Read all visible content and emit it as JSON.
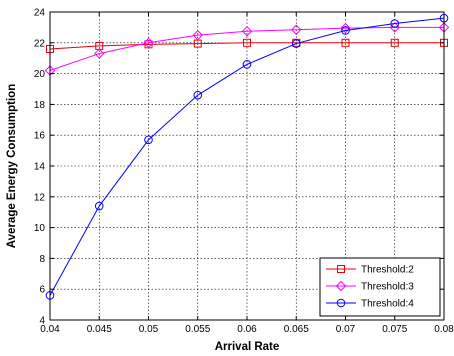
{
  "chart_data": {
    "type": "line",
    "title": "",
    "xlabel": "Arrival Rate",
    "ylabel": "Average Energy Consumption",
    "xlim": [
      0.04,
      0.08
    ],
    "ylim": [
      4,
      24
    ],
    "x": [
      0.04,
      0.045,
      0.05,
      0.055,
      0.06,
      0.065,
      0.07,
      0.075,
      0.08
    ],
    "x_tick_labels": [
      "0.04",
      "0.045",
      "0.05",
      "0.055",
      "0.06",
      "0.065",
      "0.07",
      "0.075",
      "0.08"
    ],
    "y_ticks": [
      4,
      6,
      8,
      10,
      12,
      14,
      16,
      18,
      20,
      22,
      24
    ],
    "y_tick_labels": [
      "4",
      "6",
      "8",
      "10",
      "12",
      "14",
      "16",
      "18",
      "20",
      "22",
      "24"
    ],
    "grid": true,
    "legend_position": "bottom-right",
    "series": [
      {
        "name": "Threshold:2",
        "color": "#e8000b",
        "marker": "square",
        "values": [
          21.6,
          21.8,
          21.9,
          21.95,
          22.0,
          22.0,
          22.0,
          22.0,
          22.0
        ]
      },
      {
        "name": "Threshold:3",
        "color": "#ff00ff",
        "marker": "diamond",
        "values": [
          20.2,
          21.3,
          22.0,
          22.5,
          22.75,
          22.85,
          22.95,
          23.0,
          23.0
        ]
      },
      {
        "name": "Threshold:4",
        "color": "#0000ff",
        "marker": "circle",
        "values": [
          5.6,
          11.4,
          15.7,
          18.6,
          20.6,
          21.95,
          22.8,
          23.25,
          23.6
        ]
      }
    ]
  }
}
